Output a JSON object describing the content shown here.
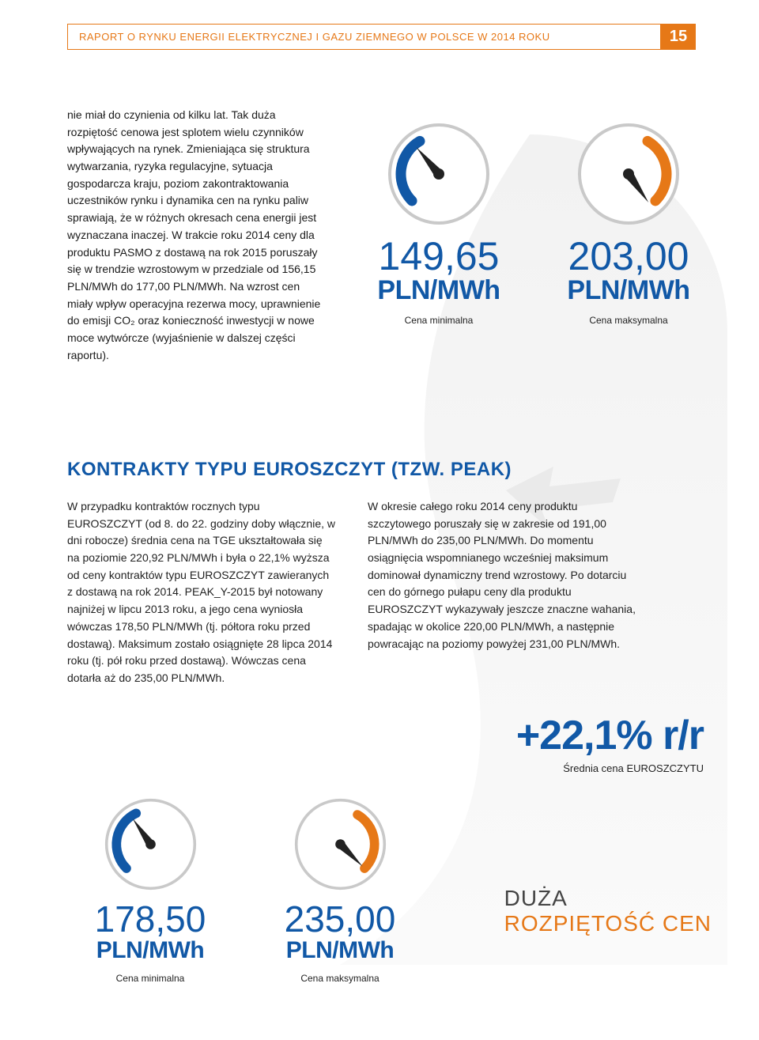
{
  "header": {
    "title": "RAPORT O RYNKU ENERGII ELEKTRYCZNEJ I GAZU ZIEMNEGO W POLSCE W 2014 ROKU",
    "page": "15"
  },
  "intro": {
    "text": "nie miał do czynienia od kilku lat. Tak duża rozpiętość cenowa jest splotem wielu czynników wpływających na rynek. Zmieniająca się struktura wytwarzania, ryzyka regulacyjne, sytuacja gospodarcza kraju, poziom zakontraktowania uczestników rynku i dynamika cen na rynku paliw sprawiają, że w różnych okresach cena energii jest wyznaczana inaczej. W trakcie roku 2014 ceny dla produktu PASMO z dostawą na rok 2015 poruszały się w trendzie wzrostowym w przedziale od 156,15 PLN/MWh do 177,00 PLN/MWh. Na wzrost cen miały wpływ operacyjna rezerwa mocy, uprawnienie do emisji CO₂ oraz konieczność inwestycji w nowe moce wytwórcze (wyjaśnienie w dalszej części raportu)."
  },
  "gauges_top": {
    "min": {
      "value": "149,65",
      "unit": "PLN/MWh",
      "label": "Cena minimalna",
      "arc_color": "#1158a6",
      "needle_angle": -130,
      "arc_start": -225,
      "arc_end": -120
    },
    "max": {
      "value": "203,00",
      "unit": "PLN/MWh",
      "label": "Cena maksymalna",
      "arc_color": "#e67817",
      "needle_angle": 55,
      "arc_start": -60,
      "arc_end": 45
    }
  },
  "section2": {
    "heading": "KONTRAKTY TYPU EUROSZCZYT (TZW. PEAK)",
    "col1": "W przypadku kontraktów rocznych typu EUROSZCZYT (od 8. do 22. godziny doby włącznie, w dni robocze) średnia cena na TGE ukształtowała się na poziomie 220,92 PLN/MWh i była o 22,1% wyższa od ceny kontraktów typu EUROSZCZYT zawieranych z dostawą na rok 2014. PEAK_Y-2015 był notowany najniżej w lipcu 2013 roku, a jego cena wyniosła wówczas 178,50 PLN/MWh (tj. półtora roku przed dostawą). Maksimum zostało osiągnięte 28 lipca 2014 roku (tj. pół roku przed dostawą). Wówczas cena dotarła aż do 235,00 PLN/MWh.",
    "col2": "W okresie całego roku 2014 ceny produktu szczytowego poruszały się w zakresie od 191,00 PLN/MWh do 235,00 PLN/MWh. Do momentu osiągnięcia wspomnianego wcześniej maksimum dominował dynamiczny trend wzrostowy. Po dotarciu cen do górnego pułapu ceny dla produktu EUROSZCZYT wykazywały jeszcze znaczne wahania, spadając w okolice 220,00 PLN/MWh, a następnie powracając na poziomy powyżej 231,00 PLN/MWh."
  },
  "pct": {
    "value": "+22,1% r/r",
    "label": "Średnia cena EUROSZCZYTU"
  },
  "gauges_bottom": {
    "min": {
      "value": "178,50",
      "unit": "PLN/MWh",
      "label": "Cena minimalna",
      "arc_color": "#1158a6",
      "needle_angle": -125,
      "arc_start": -225,
      "arc_end": -115
    },
    "max": {
      "value": "235,00",
      "unit": "PLN/MWh",
      "label": "Cena maksymalna",
      "arc_color": "#e67817",
      "needle_angle": 45,
      "arc_start": -60,
      "arc_end": 45
    }
  },
  "spread": {
    "line1": "DUŻA",
    "line2": "ROZPIĘTOŚĆ CEN"
  },
  "style": {
    "brand_blue": "#1158a6",
    "brand_orange": "#e67817",
    "gauge_outline": "#c9c9c9",
    "gauge_bg": "#ffffff",
    "swoosh_fill": "#f1f1f1"
  }
}
